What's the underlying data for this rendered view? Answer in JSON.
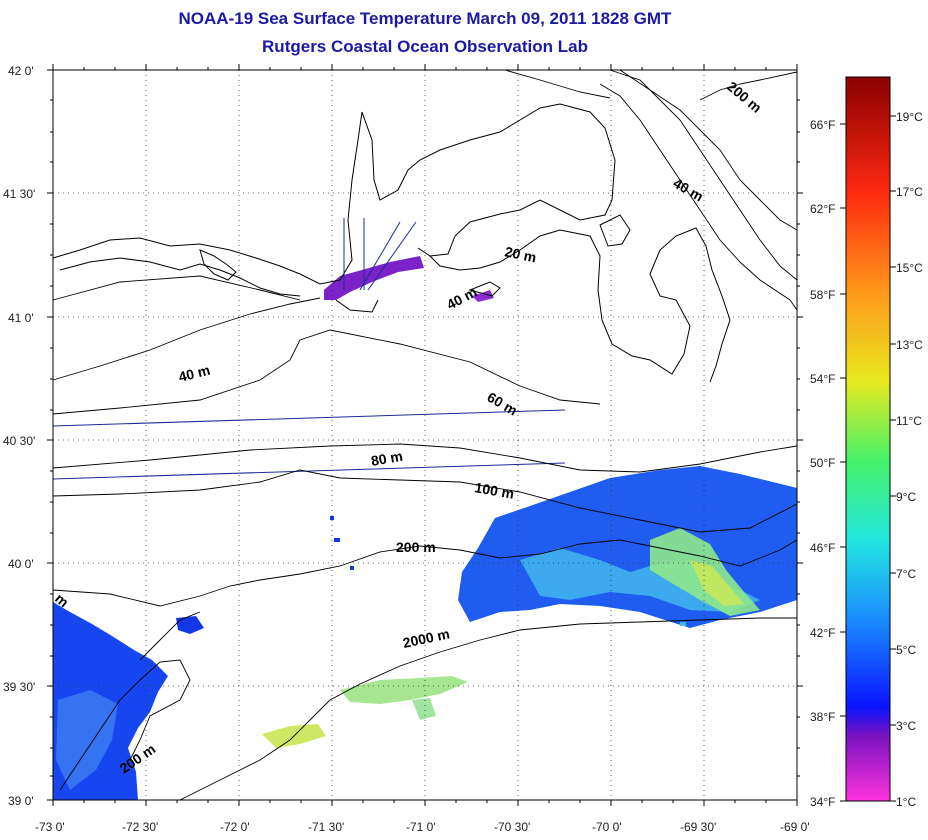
{
  "header": {
    "title": "NOAA-19 Sea Surface Temperature March 09, 2011 1828 GMT",
    "subtitle": "Rutgers Coastal Ocean Observation Lab"
  },
  "map": {
    "lon_range": [
      -73.0,
      -69.0
    ],
    "lat_range": [
      39.0,
      42.0
    ],
    "lat_labels": [
      "42 0'",
      "41 30'",
      "41 0'",
      "40 30'",
      "40 0'",
      "39 30'",
      "39 0'"
    ],
    "lon_labels": [
      "-73 0'",
      "-72 30'",
      "-72 0'",
      "-71 30'",
      "-71 0'",
      "-70 30'",
      "-70 0'",
      "-69 30'",
      "-69 0'"
    ],
    "grid": "dotted",
    "land_color": "#ffffff",
    "coastline_color": "#000000",
    "track_line_color": "#1c2a9a",
    "contours": [
      {
        "label": "20 m"
      },
      {
        "label": "40 m"
      },
      {
        "label": "40 m"
      },
      {
        "label": "40 m"
      },
      {
        "label": "60 m"
      },
      {
        "label": "80 m"
      },
      {
        "label": "100 m"
      },
      {
        "label": "200 m"
      },
      {
        "label": "200 m"
      },
      {
        "label": "200 m"
      },
      {
        "label": "2000 m"
      },
      {
        "label": "m"
      }
    ]
  },
  "colorbar": {
    "fahrenheit_labels": [
      "66°F",
      "62°F",
      "58°F",
      "54°F",
      "50°F",
      "46°F",
      "42°F",
      "38°F",
      "34°F"
    ],
    "celsius_labels": [
      "19°C",
      "17°C",
      "15°C",
      "13°C",
      "11°C",
      "9°C",
      "7°C",
      "5°C",
      "3°C",
      "1°C"
    ],
    "color_stops": [
      "#ff33dd",
      "#7a12c0",
      "#0a14ff",
      "#1a8cff",
      "#22e6e0",
      "#46f26a",
      "#e8e81e",
      "#ff9a1a",
      "#ff2a10",
      "#8a0000"
    ]
  }
}
